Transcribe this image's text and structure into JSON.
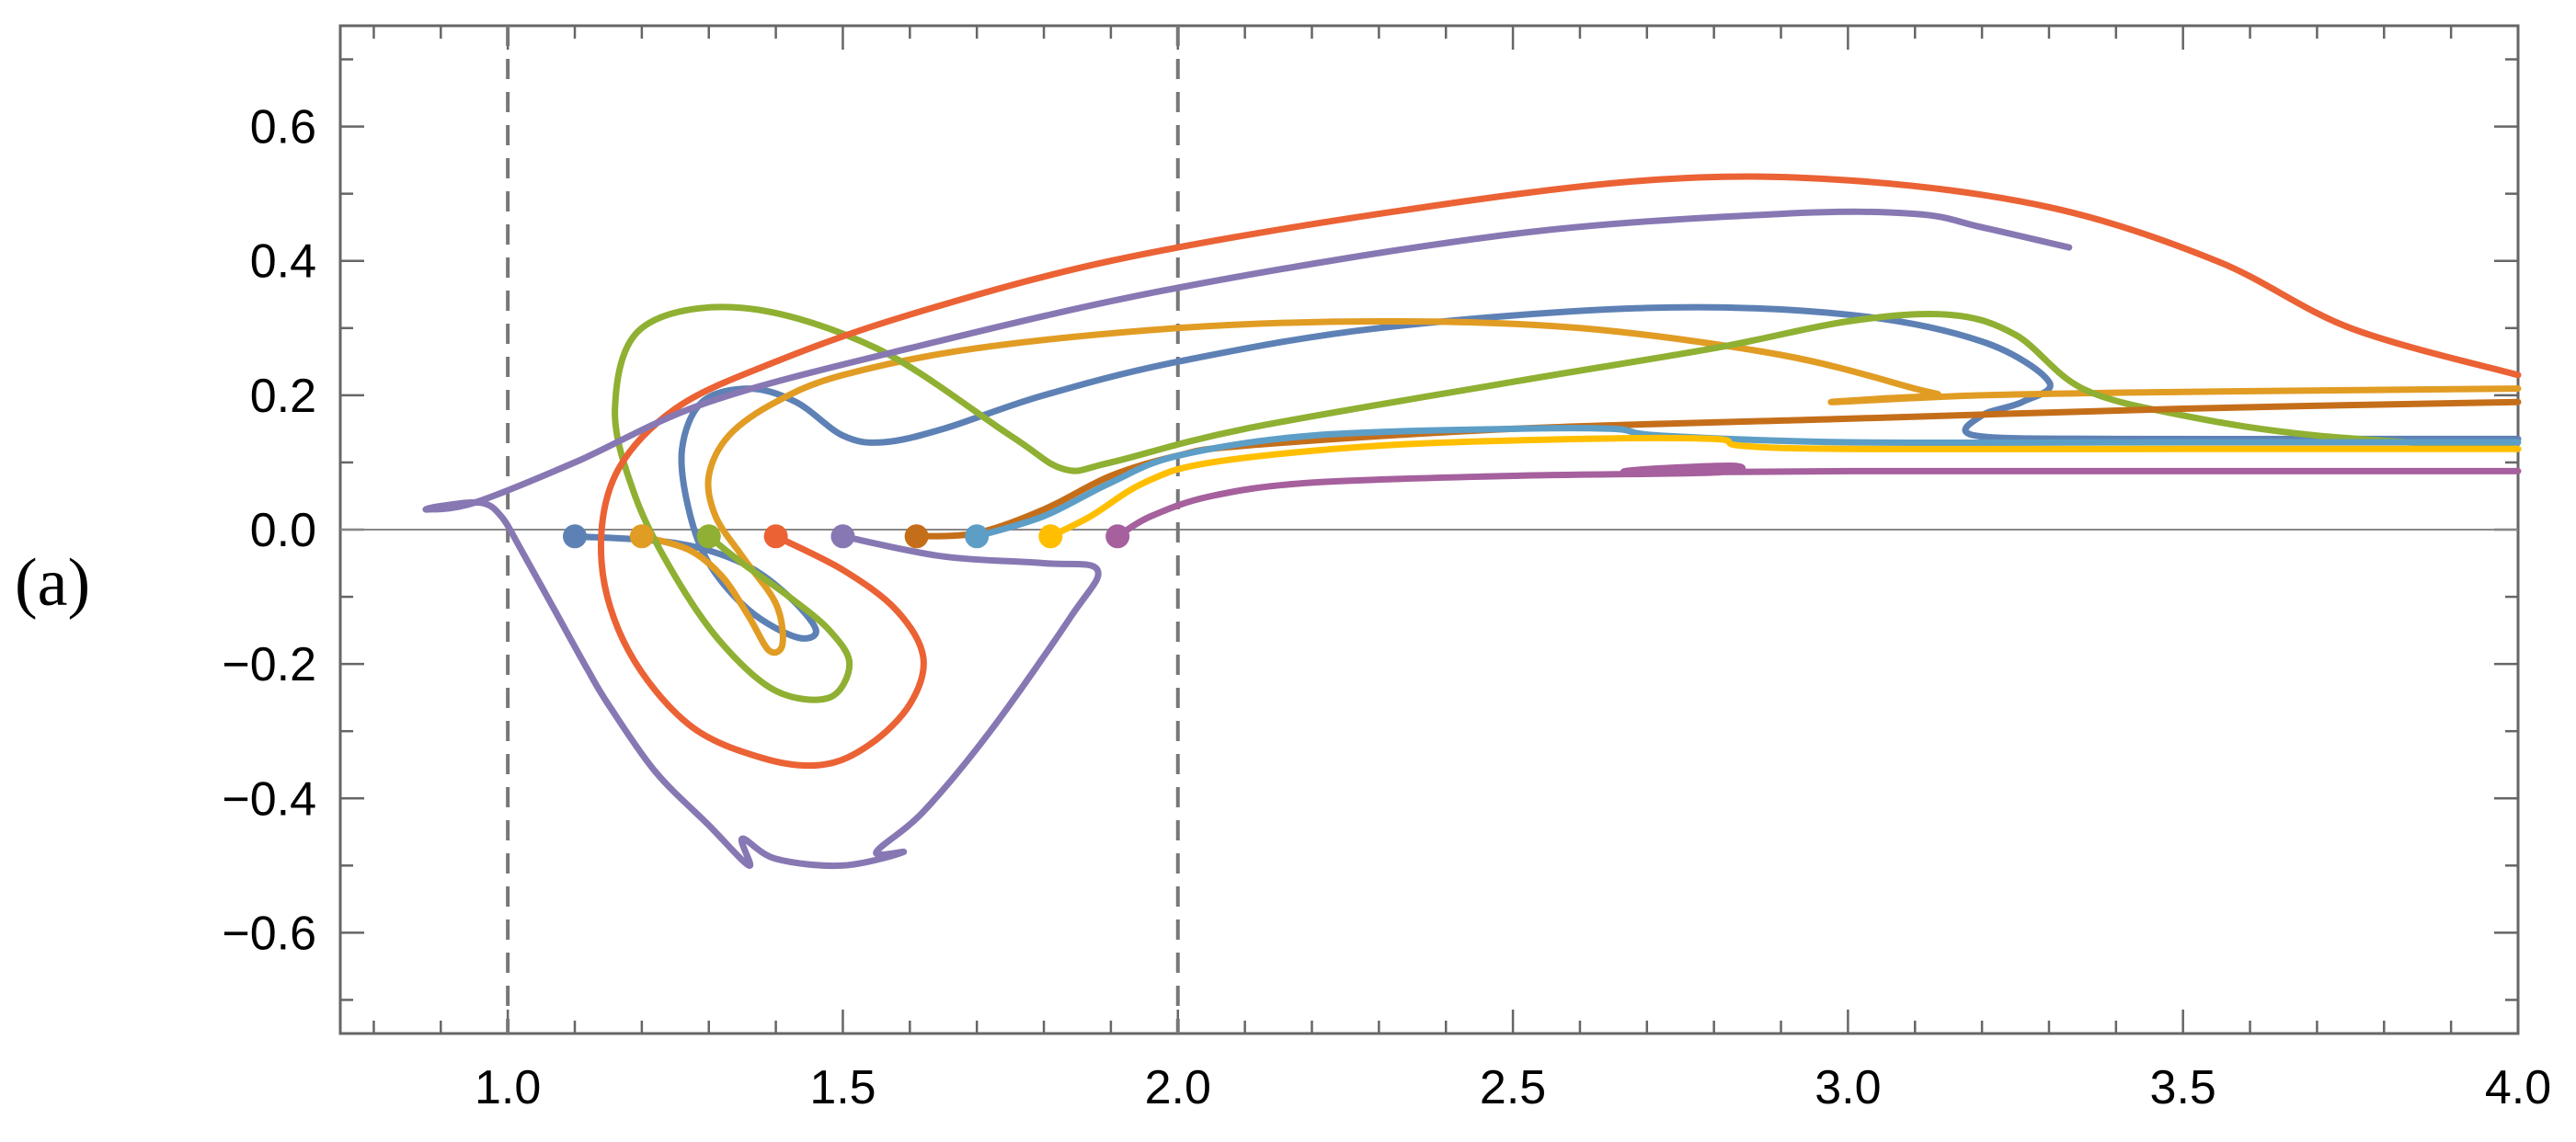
{
  "panel_label": "(a)",
  "chart_data": {
    "type": "line",
    "title": "",
    "xlabel": "",
    "ylabel": "",
    "xlim": [
      0.75,
      4.0
    ],
    "ylim": [
      -0.75,
      0.75
    ],
    "grid": false,
    "legend": "none",
    "x_ticks": [
      {
        "value": 1.0,
        "label": "1.0"
      },
      {
        "value": 1.5,
        "label": "1.5"
      },
      {
        "value": 2.0,
        "label": "2.0"
      },
      {
        "value": 2.5,
        "label": "2.5"
      },
      {
        "value": 3.0,
        "label": "3.0"
      },
      {
        "value": 3.5,
        "label": "3.5"
      },
      {
        "value": 4.0,
        "label": "4.0"
      }
    ],
    "y_ticks": [
      {
        "value": 0.6,
        "label": "0.6"
      },
      {
        "value": 0.4,
        "label": "0.4"
      },
      {
        "value": 0.2,
        "label": "0.2"
      },
      {
        "value": 0.0,
        "label": "0.0"
      },
      {
        "value": -0.2,
        "label": "−0.2"
      },
      {
        "value": -0.4,
        "label": "−0.4"
      },
      {
        "value": -0.6,
        "label": "−0.6"
      }
    ],
    "vertical_dashed_lines": [
      1.0,
      2.0
    ],
    "horizontal_zero_line": true,
    "series": [
      {
        "color": "#5e81b5",
        "start": [
          1.1,
          -0.01
        ],
        "points": [
          [
            1.1,
            -0.01
          ],
          [
            1.25,
            -0.02
          ],
          [
            1.35,
            -0.05
          ],
          [
            1.42,
            -0.1
          ],
          [
            1.46,
            -0.15
          ],
          [
            1.43,
            -0.16
          ],
          [
            1.36,
            -0.12
          ],
          [
            1.3,
            -0.05
          ],
          [
            1.27,
            0.03
          ],
          [
            1.26,
            0.12
          ],
          [
            1.29,
            0.19
          ],
          [
            1.36,
            0.21
          ],
          [
            1.43,
            0.19
          ],
          [
            1.5,
            0.14
          ],
          [
            1.56,
            0.13
          ],
          [
            1.65,
            0.15
          ],
          [
            1.8,
            0.2
          ],
          [
            2.0,
            0.25
          ],
          [
            2.3,
            0.3
          ],
          [
            2.7,
            0.33
          ],
          [
            3.0,
            0.32
          ],
          [
            3.2,
            0.28
          ],
          [
            3.3,
            0.22
          ],
          [
            3.26,
            0.19
          ],
          [
            3.2,
            0.17
          ],
          [
            3.19,
            0.14
          ],
          [
            3.4,
            0.135
          ],
          [
            3.7,
            0.135
          ],
          [
            4.0,
            0.135
          ]
        ]
      },
      {
        "color": "#e19c24",
        "start": [
          1.2,
          -0.01
        ],
        "points": [
          [
            1.2,
            -0.01
          ],
          [
            1.27,
            -0.03
          ],
          [
            1.32,
            -0.07
          ],
          [
            1.36,
            -0.13
          ],
          [
            1.39,
            -0.18
          ],
          [
            1.41,
            -0.17
          ],
          [
            1.4,
            -0.11
          ],
          [
            1.35,
            -0.04
          ],
          [
            1.31,
            0.02
          ],
          [
            1.3,
            0.08
          ],
          [
            1.33,
            0.14
          ],
          [
            1.4,
            0.19
          ],
          [
            1.5,
            0.23
          ],
          [
            1.7,
            0.27
          ],
          [
            2.0,
            0.3
          ],
          [
            2.3,
            0.31
          ],
          [
            2.6,
            0.3
          ],
          [
            2.9,
            0.26
          ],
          [
            3.1,
            0.21
          ],
          [
            3.13,
            0.2
          ],
          [
            3.05,
            0.195
          ],
          [
            2.98,
            0.19
          ],
          [
            3.2,
            0.2
          ],
          [
            3.5,
            0.205
          ],
          [
            4.0,
            0.21
          ]
        ]
      },
      {
        "color": "#8fb032",
        "start": [
          1.3,
          -0.01
        ],
        "points": [
          [
            1.3,
            -0.01
          ],
          [
            1.35,
            -0.05
          ],
          [
            1.42,
            -0.1
          ],
          [
            1.48,
            -0.15
          ],
          [
            1.51,
            -0.2
          ],
          [
            1.48,
            -0.25
          ],
          [
            1.4,
            -0.24
          ],
          [
            1.32,
            -0.17
          ],
          [
            1.25,
            -0.07
          ],
          [
            1.19,
            0.05
          ],
          [
            1.16,
            0.18
          ],
          [
            1.2,
            0.3
          ],
          [
            1.35,
            0.33
          ],
          [
            1.55,
            0.27
          ],
          [
            1.75,
            0.14
          ],
          [
            1.83,
            0.09
          ],
          [
            1.9,
            0.1
          ],
          [
            2.1,
            0.15
          ],
          [
            2.5,
            0.22
          ],
          [
            2.8,
            0.27
          ],
          [
            3.0,
            0.31
          ],
          [
            3.15,
            0.32
          ],
          [
            3.25,
            0.29
          ],
          [
            3.35,
            0.21
          ],
          [
            3.5,
            0.17
          ],
          [
            3.7,
            0.14
          ],
          [
            4.0,
            0.12
          ]
        ]
      },
      {
        "color": "#eb6235",
        "start": [
          1.4,
          -0.01
        ],
        "points": [
          [
            1.4,
            -0.01
          ],
          [
            1.5,
            -0.06
          ],
          [
            1.58,
            -0.12
          ],
          [
            1.62,
            -0.19
          ],
          [
            1.6,
            -0.26
          ],
          [
            1.54,
            -0.32
          ],
          [
            1.47,
            -0.35
          ],
          [
            1.38,
            -0.34
          ],
          [
            1.27,
            -0.29
          ],
          [
            1.18,
            -0.18
          ],
          [
            1.14,
            -0.05
          ],
          [
            1.16,
            0.08
          ],
          [
            1.25,
            0.18
          ],
          [
            1.4,
            0.25
          ],
          [
            1.6,
            0.32
          ],
          [
            1.9,
            0.4
          ],
          [
            2.3,
            0.47
          ],
          [
            2.7,
            0.52
          ],
          [
            3.0,
            0.52
          ],
          [
            3.3,
            0.48
          ],
          [
            3.55,
            0.4
          ],
          [
            3.75,
            0.3
          ],
          [
            4.0,
            0.23
          ]
        ]
      },
      {
        "color": "#8778b3",
        "start": [
          1.5,
          -0.01
        ],
        "points": [
          [
            1.5,
            -0.01
          ],
          [
            1.65,
            -0.04
          ],
          [
            1.8,
            -0.05
          ],
          [
            1.88,
            -0.06
          ],
          [
            1.84,
            -0.13
          ],
          [
            1.72,
            -0.3
          ],
          [
            1.62,
            -0.42
          ],
          [
            1.55,
            -0.48
          ],
          [
            1.59,
            -0.48
          ],
          [
            1.5,
            -0.5
          ],
          [
            1.4,
            -0.49
          ],
          [
            1.35,
            -0.46
          ],
          [
            1.36,
            -0.5
          ],
          [
            1.3,
            -0.44
          ],
          [
            1.22,
            -0.36
          ],
          [
            1.15,
            -0.26
          ],
          [
            1.12,
            -0.21
          ],
          [
            1.07,
            -0.12
          ],
          [
            1.02,
            -0.03
          ],
          [
            0.99,
            0.02
          ],
          [
            0.96,
            0.04
          ],
          [
            0.9,
            0.035
          ],
          [
            0.88,
            0.03
          ],
          [
            0.95,
            0.04
          ],
          [
            1.1,
            0.1
          ],
          [
            1.3,
            0.19
          ],
          [
            1.6,
            0.27
          ],
          [
            2.0,
            0.36
          ],
          [
            2.5,
            0.44
          ],
          [
            2.9,
            0.47
          ],
          [
            3.1,
            0.47
          ],
          [
            3.2,
            0.45
          ],
          [
            3.33,
            0.42
          ]
        ]
      },
      {
        "color": "#c56e1a",
        "start": [
          1.61,
          -0.01
        ],
        "points": [
          [
            1.61,
            -0.01
          ],
          [
            1.7,
            -0.005
          ],
          [
            1.8,
            0.03
          ],
          [
            1.9,
            0.08
          ],
          [
            2.0,
            0.11
          ],
          [
            2.1,
            0.125
          ],
          [
            2.5,
            0.15
          ],
          [
            3.0,
            0.165
          ],
          [
            3.5,
            0.18
          ],
          [
            4.0,
            0.19
          ]
        ]
      },
      {
        "color": "#5d9ec7",
        "start": [
          1.7,
          -0.01
        ],
        "points": [
          [
            1.7,
            -0.01
          ],
          [
            1.8,
            0.02
          ],
          [
            1.9,
            0.07
          ],
          [
            2.0,
            0.11
          ],
          [
            2.2,
            0.14
          ],
          [
            2.5,
            0.15
          ],
          [
            2.65,
            0.15
          ],
          [
            2.72,
            0.14
          ],
          [
            3.0,
            0.13
          ],
          [
            3.5,
            0.13
          ],
          [
            4.0,
            0.13
          ]
        ]
      },
      {
        "color": "#ffbf00",
        "start": [
          1.81,
          -0.01
        ],
        "points": [
          [
            1.81,
            -0.01
          ],
          [
            1.87,
            0.02
          ],
          [
            1.95,
            0.07
          ],
          [
            2.05,
            0.1
          ],
          [
            2.3,
            0.125
          ],
          [
            2.6,
            0.135
          ],
          [
            2.8,
            0.135
          ],
          [
            2.84,
            0.125
          ],
          [
            3.0,
            0.12
          ],
          [
            3.5,
            0.12
          ],
          [
            4.0,
            0.12
          ]
        ]
      },
      {
        "color": "#a5609d",
        "start": [
          1.91,
          -0.01
        ],
        "points": [
          [
            1.91,
            -0.01
          ],
          [
            1.96,
            0.02
          ],
          [
            2.05,
            0.05
          ],
          [
            2.2,
            0.07
          ],
          [
            2.5,
            0.08
          ],
          [
            2.8,
            0.085
          ],
          [
            2.83,
            0.095
          ],
          [
            2.7,
            0.09
          ],
          [
            2.69,
            0.085
          ],
          [
            3.0,
            0.087
          ],
          [
            3.5,
            0.087
          ],
          [
            4.0,
            0.087
          ]
        ]
      }
    ]
  }
}
